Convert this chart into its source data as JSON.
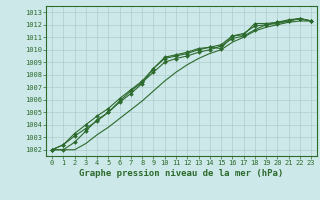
{
  "x": [
    0,
    1,
    2,
    3,
    4,
    5,
    6,
    7,
    8,
    9,
    10,
    11,
    12,
    13,
    14,
    15,
    16,
    17,
    18,
    19,
    20,
    21,
    22,
    23
  ],
  "line1": [
    1002.0,
    1002.4,
    1003.1,
    1003.7,
    1004.3,
    1005.0,
    1005.8,
    1006.5,
    1007.3,
    1008.5,
    1009.4,
    1009.6,
    1009.8,
    1010.1,
    1010.2,
    1010.1,
    1011.1,
    1011.2,
    1012.1,
    1012.1,
    1012.2,
    1012.4,
    1012.5,
    1012.3
  ],
  "line2": [
    1002.0,
    1002.4,
    1003.3,
    1004.0,
    1004.7,
    1005.3,
    1006.1,
    1006.8,
    1007.5,
    1008.5,
    1009.3,
    1009.5,
    1009.7,
    1010.0,
    1010.2,
    1010.4,
    1011.1,
    1011.3,
    1011.9,
    1012.0,
    1012.1,
    1012.3,
    1012.5,
    1012.3
  ],
  "line3": [
    1002.0,
    1002.0,
    1002.6,
    1003.5,
    1004.4,
    1005.0,
    1005.9,
    1006.7,
    1007.4,
    1008.2,
    1009.0,
    1009.3,
    1009.5,
    1009.8,
    1010.0,
    1010.3,
    1010.9,
    1011.1,
    1011.6,
    1012.0,
    1012.2,
    1012.3,
    1012.5,
    1012.3
  ],
  "line4": [
    1002.0,
    1002.0,
    1002.0,
    1002.5,
    1003.2,
    1003.8,
    1004.5,
    1005.2,
    1005.9,
    1006.7,
    1007.5,
    1008.2,
    1008.8,
    1009.3,
    1009.7,
    1010.0,
    1010.6,
    1011.0,
    1011.5,
    1011.8,
    1012.0,
    1012.2,
    1012.3,
    1012.3
  ],
  "line_color": "#2d6a2d",
  "bg_color": "#cce8e8",
  "grid_color": "#b0cccc",
  "ylim": [
    1001.5,
    1013.5
  ],
  "xlim": [
    -0.5,
    23.5
  ],
  "yticks": [
    1002,
    1003,
    1004,
    1005,
    1006,
    1007,
    1008,
    1009,
    1010,
    1011,
    1012,
    1013
  ],
  "xticks": [
    0,
    1,
    2,
    3,
    4,
    5,
    6,
    7,
    8,
    9,
    10,
    11,
    12,
    13,
    14,
    15,
    16,
    17,
    18,
    19,
    20,
    21,
    22,
    23
  ],
  "xlabel": "Graphe pression niveau de la mer (hPa)",
  "xlabel_fontsize": 6.5,
  "tick_fontsize": 5.0,
  "marker": "D",
  "marker_size": 2.0,
  "linewidth": 0.8
}
